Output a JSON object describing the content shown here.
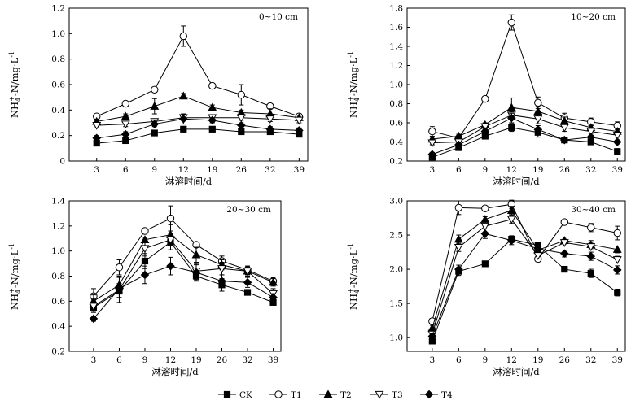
{
  "figure": {
    "legend": [
      {
        "name": "CK",
        "marker": "square",
        "fill": "#000000"
      },
      {
        "name": "T1",
        "marker": "circle",
        "fill": "#ffffff"
      },
      {
        "name": "T2",
        "marker": "triangle-up",
        "fill": "#000000"
      },
      {
        "name": "T3",
        "marker": "triangle-down",
        "fill": "#ffffff"
      },
      {
        "name": "T4",
        "marker": "diamond",
        "fill": "#000000"
      }
    ],
    "ylabel_main": "NH",
    "ylabel_sub": "4",
    "ylabel_sup": "+",
    "ylabel_rest": "-N/mg·L",
    "ylabel_exp": "-1"
  },
  "chart_data": [
    {
      "type": "line",
      "title": "0~10 cm",
      "categories": [
        "3",
        "6",
        "9",
        "12",
        "19",
        "26",
        "32",
        "39"
      ],
      "xlabel": "淋溶时间/d",
      "ylabel": "NH4+-N/mg·L-1",
      "ylim": [
        0.0,
        1.2
      ],
      "yticks": [
        "0",
        "0.2",
        "0.4",
        "0.6",
        "0.8",
        "1.0",
        "1.2"
      ],
      "series": [
        {
          "name": "CK",
          "values": [
            0.14,
            0.16,
            0.22,
            0.25,
            0.25,
            0.23,
            0.23,
            0.21
          ],
          "errors": [
            0.02,
            0.02,
            0.02,
            0.02,
            0.02,
            0.02,
            0.02,
            0.02
          ]
        },
        {
          "name": "T1",
          "values": [
            0.35,
            0.45,
            0.56,
            0.98,
            0.59,
            0.52,
            0.43,
            0.35
          ],
          "errors": [
            0.02,
            0.02,
            0.02,
            0.08,
            0.02,
            0.08,
            0.02,
            0.02
          ]
        },
        {
          "name": "T2",
          "values": [
            0.31,
            0.35,
            0.43,
            0.51,
            0.42,
            0.38,
            0.37,
            0.34
          ],
          "errors": [
            0.02,
            0.02,
            0.06,
            0.02,
            0.02,
            0.02,
            0.04,
            0.02
          ]
        },
        {
          "name": "T3",
          "values": [
            0.28,
            0.29,
            0.31,
            0.34,
            0.34,
            0.34,
            0.33,
            0.32
          ],
          "errors": [
            0.02,
            0.02,
            0.02,
            0.02,
            0.02,
            0.02,
            0.02,
            0.02
          ]
        },
        {
          "name": "T4",
          "values": [
            0.18,
            0.21,
            0.29,
            0.33,
            0.32,
            0.28,
            0.25,
            0.24
          ],
          "errors": [
            0.02,
            0.02,
            0.02,
            0.04,
            0.02,
            0.02,
            0.02,
            0.02
          ]
        }
      ]
    },
    {
      "type": "line",
      "title": "10~20 cm",
      "categories": [
        "3",
        "6",
        "9",
        "12",
        "19",
        "26",
        "32",
        "39"
      ],
      "xlabel": "淋溶时间/d",
      "ylabel": "NH4+-N/mg·L-1",
      "ylim": [
        0.2,
        1.8
      ],
      "yticks": [
        "0.2",
        "0.4",
        "0.6",
        "0.8",
        "1.0",
        "1.2",
        "1.4",
        "1.6",
        "1.8"
      ],
      "series": [
        {
          "name": "CK",
          "values": [
            0.24,
            0.34,
            0.46,
            0.55,
            0.5,
            0.42,
            0.4,
            0.3
          ],
          "errors": [
            0.02,
            0.02,
            0.02,
            0.04,
            0.05,
            0.02,
            0.02,
            0.02
          ]
        },
        {
          "name": "T1",
          "values": [
            0.51,
            0.44,
            0.85,
            1.65,
            0.81,
            0.65,
            0.61,
            0.57
          ],
          "errors": [
            0.05,
            0.02,
            0.02,
            0.08,
            0.06,
            0.05,
            0.04,
            0.04
          ]
        },
        {
          "name": "T2",
          "values": [
            0.43,
            0.46,
            0.58,
            0.76,
            0.72,
            0.62,
            0.55,
            0.51
          ],
          "errors": [
            0.02,
            0.02,
            0.02,
            0.1,
            0.05,
            0.04,
            0.02,
            0.02
          ]
        },
        {
          "name": "T3",
          "values": [
            0.39,
            0.4,
            0.56,
            0.68,
            0.64,
            0.55,
            0.51,
            0.47
          ],
          "errors": [
            0.02,
            0.02,
            0.02,
            0.04,
            0.05,
            0.04,
            0.02,
            0.02
          ]
        },
        {
          "name": "T4",
          "values": [
            0.27,
            0.37,
            0.51,
            0.65,
            0.53,
            0.42,
            0.45,
            0.4
          ],
          "errors": [
            0.02,
            0.02,
            0.02,
            0.05,
            0.04,
            0.02,
            0.02,
            0.02
          ]
        }
      ]
    },
    {
      "type": "line",
      "title": "20~30 cm",
      "categories": [
        "3",
        "6",
        "9",
        "12",
        "19",
        "26",
        "32",
        "39"
      ],
      "xlabel": "淋溶时间/d",
      "ylabel": "NH4+-N/mg·L-1",
      "ylim": [
        0.2,
        1.4
      ],
      "yticks": [
        "0.2",
        "0.4",
        "0.6",
        "0.8",
        "1.0",
        "1.2",
        "1.4"
      ],
      "series": [
        {
          "name": "CK",
          "values": [
            0.55,
            0.68,
            0.92,
            1.07,
            0.8,
            0.73,
            0.67,
            0.59
          ],
          "errors": [
            0.03,
            0.05,
            0.06,
            0.06,
            0.04,
            0.05,
            0.02,
            0.02
          ]
        },
        {
          "name": "T1",
          "values": [
            0.64,
            0.87,
            1.16,
            1.26,
            1.05,
            0.92,
            0.85,
            0.76
          ],
          "errors": [
            0.06,
            0.06,
            0.02,
            0.1,
            0.02,
            0.04,
            0.03,
            0.03
          ]
        },
        {
          "name": "T2",
          "values": [
            0.6,
            0.73,
            1.09,
            1.13,
            0.97,
            0.89,
            0.84,
            0.75
          ],
          "errors": [
            0.05,
            0.07,
            0.02,
            0.08,
            0.06,
            0.04,
            0.03,
            0.03
          ]
        },
        {
          "name": "T3",
          "values": [
            0.56,
            0.69,
            1.02,
            1.09,
            0.84,
            0.86,
            0.84,
            0.66
          ],
          "errors": [
            0.05,
            0.1,
            0.06,
            0.05,
            0.06,
            0.05,
            0.04,
            0.04
          ]
        },
        {
          "name": "T4",
          "values": [
            0.46,
            0.7,
            0.81,
            0.88,
            0.83,
            0.76,
            0.75,
            0.63
          ],
          "errors": [
            0.02,
            0.04,
            0.07,
            0.07,
            0.06,
            0.05,
            0.04,
            0.03
          ]
        }
      ]
    },
    {
      "type": "line",
      "title": "30~40 cm",
      "categories": [
        "3",
        "6",
        "9",
        "12",
        "19",
        "26",
        "32",
        "39"
      ],
      "xlabel": "淋溶时间/d",
      "ylabel": "NH4+-N/mg·L-1",
      "ylim": [
        0.8,
        3.0
      ],
      "yticks": [
        "1.0",
        "1.5",
        "2.0",
        "2.5",
        "3.0"
      ],
      "series": [
        {
          "name": "CK",
          "values": [
            0.95,
            1.97,
            2.08,
            2.44,
            2.35,
            2.0,
            1.94,
            1.66
          ],
          "errors": [
            0.04,
            0.06,
            0.02,
            0.05,
            0.04,
            0.02,
            0.06,
            0.05
          ]
        },
        {
          "name": "T1",
          "values": [
            1.24,
            2.9,
            2.89,
            2.95,
            2.15,
            2.69,
            2.61,
            2.53
          ],
          "errors": [
            0.04,
            0.1,
            0.02,
            0.06,
            0.04,
            0.02,
            0.06,
            0.1
          ]
        },
        {
          "name": "T2",
          "values": [
            1.14,
            2.44,
            2.73,
            2.86,
            2.28,
            2.42,
            2.36,
            2.29
          ],
          "errors": [
            0.04,
            0.06,
            0.04,
            0.06,
            0.05,
            0.05,
            0.06,
            0.05
          ]
        },
        {
          "name": "T3",
          "values": [
            1.05,
            2.32,
            2.63,
            2.73,
            2.2,
            2.39,
            2.33,
            2.14
          ],
          "errors": [
            0.04,
            0.06,
            0.04,
            0.06,
            0.05,
            0.05,
            0.05,
            0.05
          ]
        },
        {
          "name": "T4",
          "values": [
            1.02,
            2.0,
            2.52,
            2.42,
            2.3,
            2.23,
            2.19,
            1.99
          ],
          "errors": [
            0.04,
            0.06,
            0.07,
            0.06,
            0.05,
            0.05,
            0.06,
            0.06
          ]
        }
      ]
    }
  ]
}
